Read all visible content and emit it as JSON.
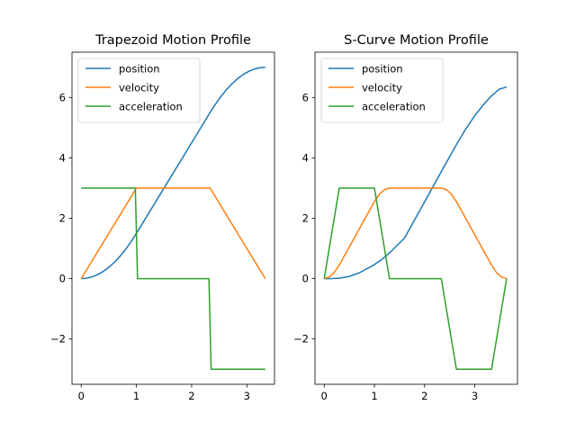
{
  "chart_data": [
    {
      "type": "line",
      "title": "Trapezoid Motion Profile",
      "xlabel": "",
      "ylabel": "",
      "xlim": [
        -0.1667,
        3.5
      ],
      "ylim": [
        -3.5,
        7.5
      ],
      "xticks": [
        0,
        1,
        2,
        3
      ],
      "yticks": [
        -2,
        0,
        2,
        4,
        6
      ],
      "grid": false,
      "legend": {
        "position": "top-left"
      },
      "series": [
        {
          "name": "position",
          "color": "#1f77b4",
          "x": [
            0,
            0.1,
            0.2,
            0.3,
            0.4,
            0.5,
            0.6,
            0.7,
            0.8,
            0.9,
            1.0,
            1.5,
            2.0,
            2.333,
            2.433,
            2.533,
            2.633,
            2.733,
            2.833,
            2.933,
            3.033,
            3.133,
            3.233,
            3.333
          ],
          "y": [
            0,
            0.015,
            0.06,
            0.135,
            0.24,
            0.375,
            0.54,
            0.735,
            0.96,
            1.215,
            1.5,
            3.0,
            4.5,
            5.5,
            5.785,
            6.04,
            6.265,
            6.46,
            6.625,
            6.76,
            6.865,
            6.94,
            6.985,
            7.0
          ]
        },
        {
          "name": "velocity",
          "color": "#ff7f0e",
          "x": [
            0,
            1.0,
            2.333,
            3.333
          ],
          "y": [
            0,
            3,
            3,
            0
          ]
        },
        {
          "name": "acceleration",
          "color": "#2ca02c",
          "x": [
            0,
            0.98,
            1.02,
            2.313,
            2.353,
            3.333
          ],
          "y": [
            3,
            3,
            0,
            0,
            -3,
            -3
          ]
        }
      ]
    },
    {
      "type": "line",
      "title": "S-Curve Motion Profile",
      "xlabel": "",
      "ylabel": "",
      "xlim": [
        -0.1833,
        3.85
      ],
      "ylim": [
        -3.5,
        7.5
      ],
      "xticks": [
        0,
        1,
        2,
        3
      ],
      "yticks": [
        -2,
        0,
        2,
        4,
        6
      ],
      "grid": false,
      "legend": {
        "position": "top-left"
      },
      "series": [
        {
          "name": "position",
          "color": "#1f77b4",
          "x": [
            0,
            0.15,
            0.3,
            0.5,
            0.7,
            1.0,
            1.15,
            1.3,
            1.6,
            2.0,
            2.333,
            2.483,
            2.633,
            2.8,
            3.0,
            3.2,
            3.333,
            3.483,
            3.633
          ],
          "y": [
            0,
            0.0017,
            0.0135,
            0.0735,
            0.1935,
            0.4635,
            0.641,
            0.848,
            1.345,
            2.545,
            3.545,
            3.995,
            4.439,
            4.906,
            5.402,
            5.817,
            6.055,
            6.27,
            6.35
          ]
        },
        {
          "name": "velocity",
          "color": "#ff7f0e",
          "x": [
            0,
            0.1,
            0.2,
            0.3,
            0.5,
            0.7,
            1.0,
            1.1,
            1.2,
            1.3,
            2.333,
            2.433,
            2.533,
            2.633,
            2.8,
            3.0,
            3.2,
            3.333,
            3.433,
            3.533,
            3.633
          ],
          "y": [
            0,
            0.05,
            0.2,
            0.45,
            1.05,
            1.65,
            2.55,
            2.8,
            2.95,
            3.0,
            3.0,
            2.95,
            2.8,
            2.55,
            2.05,
            1.45,
            0.85,
            0.45,
            0.2,
            0.05,
            0
          ]
        },
        {
          "name": "acceleration",
          "color": "#2ca02c",
          "x": [
            0,
            0.3,
            1.0,
            1.3,
            2.333,
            2.633,
            3.333,
            3.633
          ],
          "y": [
            0,
            3,
            3,
            0,
            0,
            -3,
            -3,
            0
          ]
        }
      ]
    }
  ]
}
